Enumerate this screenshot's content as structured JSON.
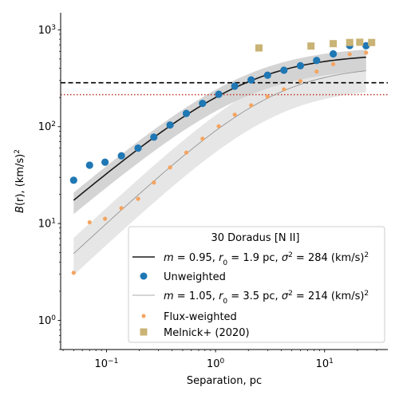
{
  "chart_data": {
    "type": "scatter",
    "title": "",
    "xlabel": "Separation, pc",
    "ylabel": "B(r), (km/s)²",
    "x_scale": "log",
    "y_scale": "log",
    "xlim": [
      0.038,
      38
    ],
    "ylim": [
      0.5,
      1500
    ],
    "x_ticks": [
      {
        "value": 0.1,
        "base": "10",
        "exp": "−1"
      },
      {
        "value": 1,
        "base": "10",
        "exp": "0"
      },
      {
        "value": 10,
        "base": "10",
        "exp": "1"
      }
    ],
    "y_ticks": [
      {
        "value": 1,
        "base": "10",
        "exp": "0"
      },
      {
        "value": 10,
        "base": "10",
        "exp": "1"
      },
      {
        "value": 100,
        "base": "10",
        "exp": "2"
      },
      {
        "value": 1000,
        "base": "10",
        "exp": "3"
      }
    ],
    "grid": false,
    "legend_position": "lower-right",
    "legend_title": "30 Doradus [N II]",
    "hlines": [
      {
        "y": 284,
        "style": "dashed",
        "color": "#000000"
      },
      {
        "y": 214,
        "style": "dotted",
        "color": "#c0392b"
      }
    ],
    "series": [
      {
        "name": "Unweighted",
        "kind": "points",
        "marker": "circle",
        "color": "#1f77b4",
        "x": [
          0.05,
          0.07,
          0.097,
          0.137,
          0.195,
          0.272,
          0.383,
          0.54,
          0.76,
          1.07,
          1.5,
          2.12,
          3.0,
          4.24,
          6.0,
          8.45,
          12.0,
          17.0,
          24.0
        ],
        "y": [
          28,
          40,
          43,
          50,
          60,
          78,
          104,
          137,
          174,
          216,
          262,
          304,
          340,
          383,
          426,
          483,
          565,
          688,
          685
        ]
      },
      {
        "name": "Flux-weighted",
        "kind": "points",
        "marker": "circle-small",
        "color": "#f4a460",
        "x": [
          0.05,
          0.07,
          0.097,
          0.137,
          0.195,
          0.272,
          0.383,
          0.54,
          0.76,
          1.07,
          1.5,
          2.12,
          3.0,
          4.24,
          6.0,
          8.45,
          12.0,
          17.0,
          24.0
        ],
        "y": [
          3.1,
          10.3,
          11.2,
          14.4,
          18,
          26.5,
          38,
          54,
          75,
          101,
          133,
          166,
          204,
          243,
          295,
          371,
          442,
          560,
          580
        ]
      },
      {
        "name": "Melnick+ (2020)",
        "kind": "points",
        "marker": "square",
        "color": "#c9b375",
        "x": [
          2.5,
          7.5,
          12.0,
          17.0,
          21.0,
          27.0
        ],
        "y": [
          650,
          680,
          720,
          740,
          745,
          740
        ]
      },
      {
        "name": "m = 0.95, r₀ = 1.9 pc, σ² = 284 (km/s)²",
        "kind": "model",
        "color": "#1a1a1a",
        "line_width": 1.6,
        "m": 0.95,
        "r0": 1.9,
        "sigma2": 284,
        "x_range": [
          0.05,
          24
        ],
        "band_factor": [
          0.72,
          1.2
        ],
        "band_color": "#b0b0b0",
        "legend_math": {
          "m": "0.95",
          "r0": "1.9",
          "s2": "284"
        }
      },
      {
        "name": "m = 1.05, r₀ = 3.5 pc, σ² = 214 (km/s)²",
        "kind": "model",
        "color": "#8c8c8c",
        "line_width": 0.8,
        "m": 1.05,
        "r0": 3.5,
        "sigma2": 214,
        "x_range": [
          0.05,
          24
        ],
        "band_factor": [
          0.6,
          1.45
        ],
        "band_color": "#d2d2d2",
        "legend_math": {
          "m": "1.05",
          "r0": "3.5",
          "s2": "214"
        }
      }
    ]
  },
  "legend": {
    "title": "30 Doradus [N II]",
    "unweighted": "Unweighted",
    "flux_weighted": "Flux-weighted",
    "melnick": "Melnick+ (2020)",
    "unit": " pc, ",
    "units_tail": " (km/s)"
  }
}
